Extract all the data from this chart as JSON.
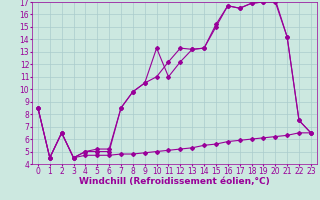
{
  "xlabel": "Windchill (Refroidissement éolien,°C)",
  "bg_color": "#cce8e0",
  "grid_color": "#aacccc",
  "line_color": "#990099",
  "xlim": [
    -0.5,
    23.5
  ],
  "ylim": [
    4,
    17
  ],
  "xticks": [
    0,
    1,
    2,
    3,
    4,
    5,
    6,
    7,
    8,
    9,
    10,
    11,
    12,
    13,
    14,
    15,
    16,
    17,
    18,
    19,
    20,
    21,
    22,
    23
  ],
  "yticks": [
    4,
    5,
    6,
    7,
    8,
    9,
    10,
    11,
    12,
    13,
    14,
    15,
    16,
    17
  ],
  "line1_y": [
    8.5,
    4.5,
    6.5,
    4.5,
    5.0,
    5.0,
    5.0,
    8.5,
    9.8,
    10.5,
    11.0,
    12.2,
    13.3,
    13.2,
    13.3,
    15.2,
    16.7,
    16.5,
    16.9,
    17.0,
    17.0,
    14.2,
    7.5,
    6.5
  ],
  "line2_y": [
    8.5,
    4.5,
    6.5,
    4.5,
    5.0,
    5.2,
    5.2,
    8.5,
    9.8,
    10.5,
    13.3,
    11.0,
    12.2,
    13.2,
    13.3,
    15.0,
    16.7,
    16.5,
    16.9,
    17.0,
    17.2,
    14.2,
    7.5,
    6.5
  ],
  "line3_y": [
    8.5,
    4.5,
    6.5,
    4.5,
    4.7,
    4.7,
    4.7,
    4.8,
    4.8,
    4.9,
    5.0,
    5.1,
    5.2,
    5.3,
    5.5,
    5.6,
    5.8,
    5.9,
    6.0,
    6.1,
    6.2,
    6.3,
    6.5,
    6.5
  ],
  "tick_fontsize": 5.5,
  "xlabel_fontsize": 6.5
}
